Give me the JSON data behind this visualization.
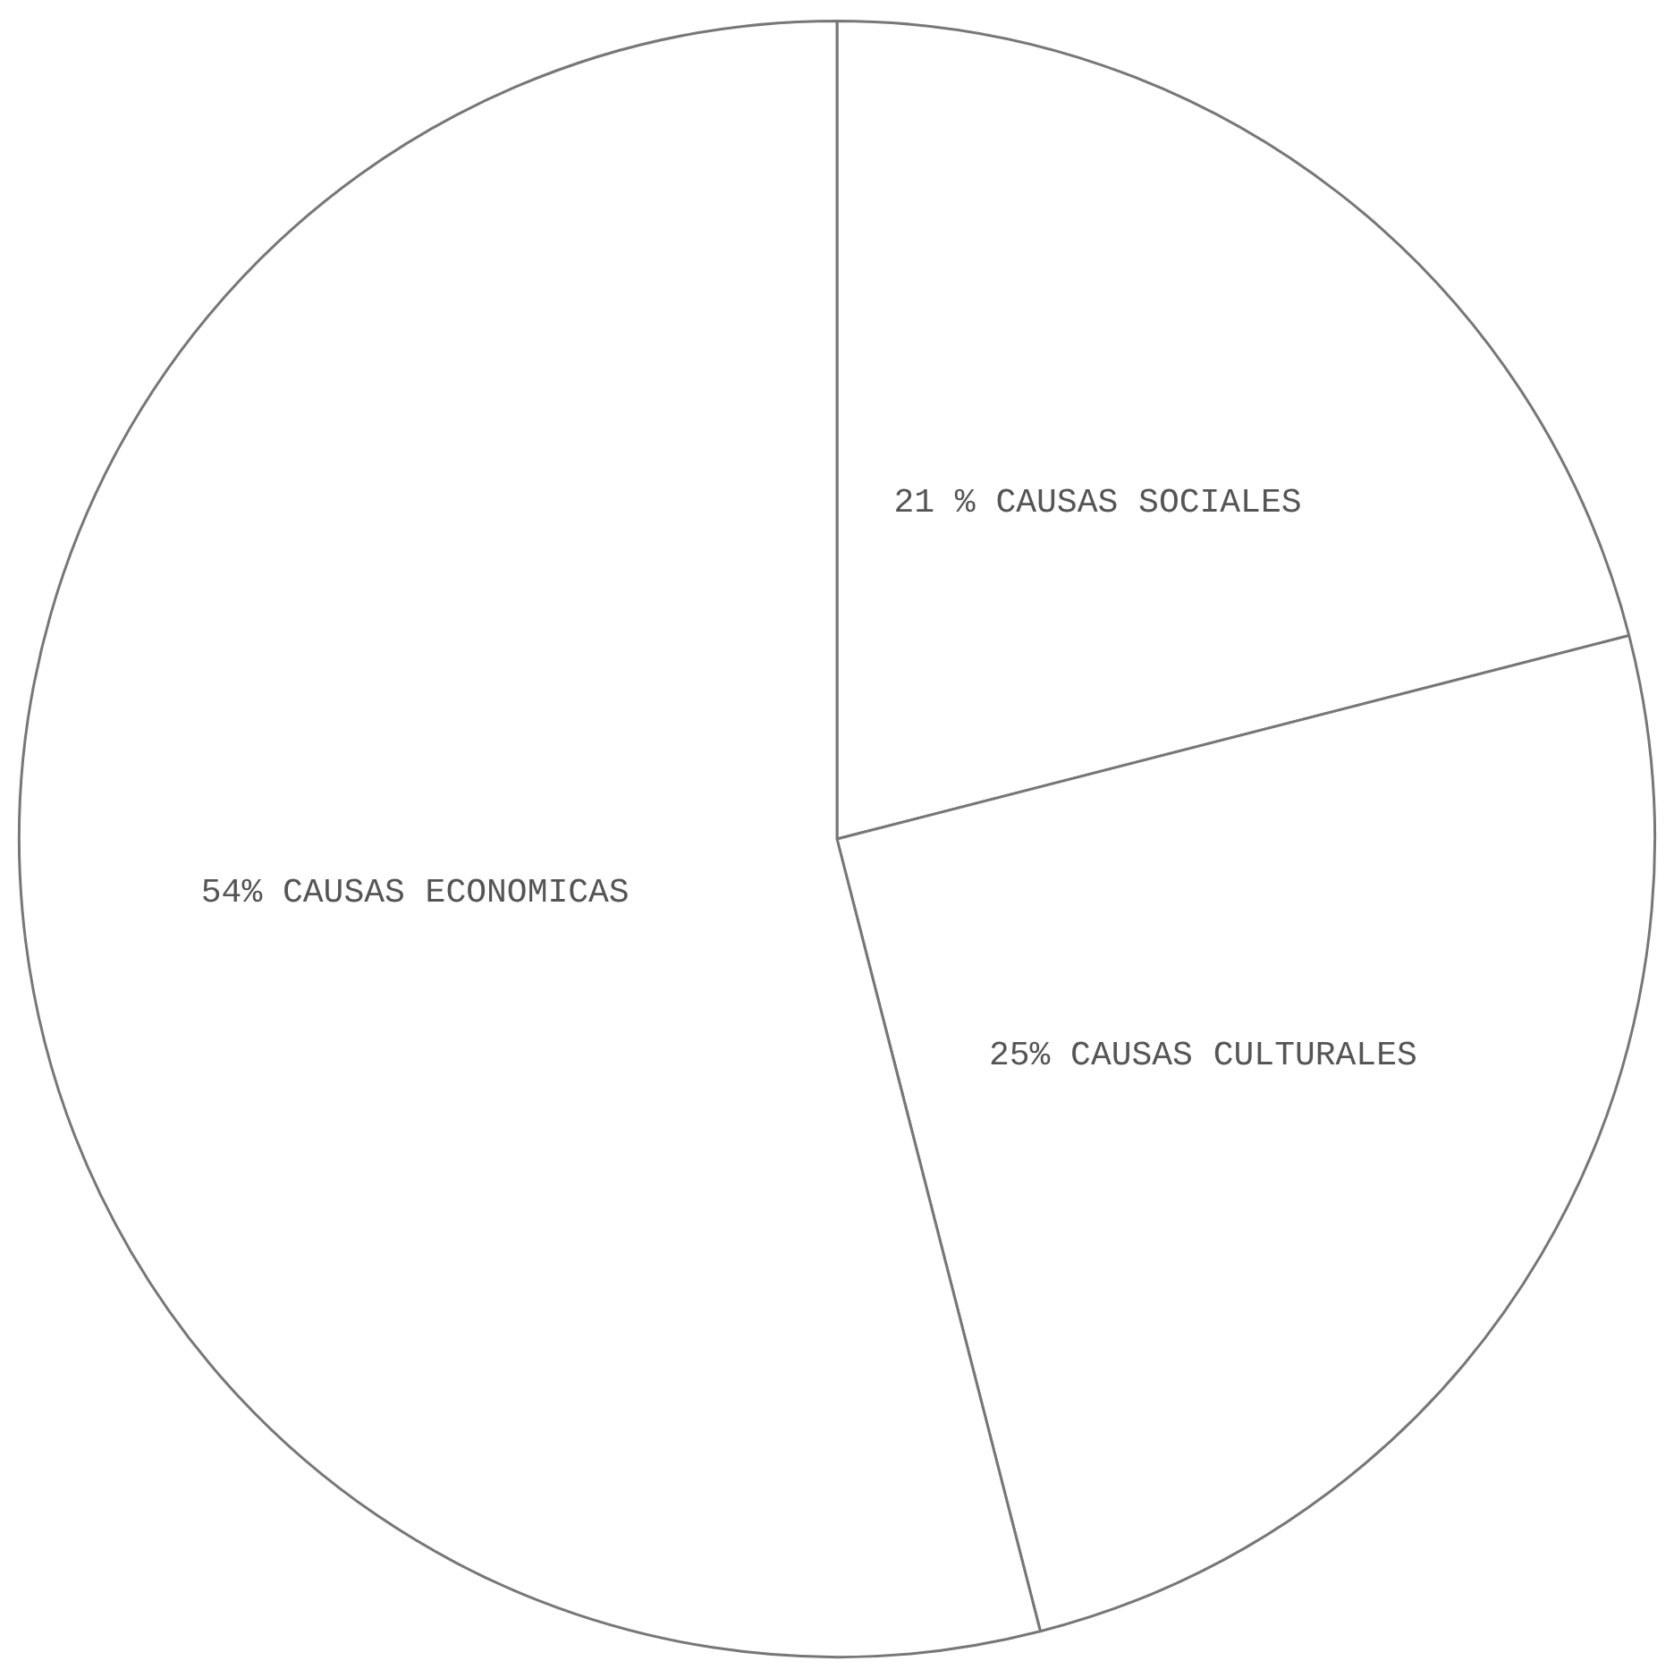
{
  "chart_data": {
    "type": "pie",
    "categories": [
      "CAUSAS SOCIALES",
      "CAUSAS CULTURALES",
      "CAUSAS ECONOMICAS"
    ],
    "values": [
      21,
      25,
      54
    ],
    "value_labels": [
      "21 %",
      "25%",
      "54%"
    ],
    "colors": [
      "#ffffff",
      "#ffffff",
      "#ffffff"
    ],
    "legend": false
  }
}
